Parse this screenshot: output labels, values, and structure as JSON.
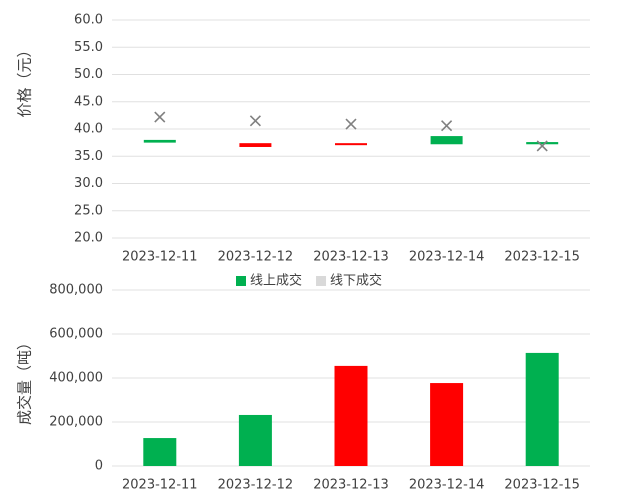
{
  "chart_data": [
    {
      "type": "candlestick",
      "y_label": "价格（元）",
      "categories": [
        "2023-12-11",
        "2023-12-12",
        "2023-12-13",
        "2023-12-14",
        "2023-12-15"
      ],
      "series": [
        {
          "name": "线上成交",
          "color": "#00b050",
          "open": [
            37.5,
            37.4,
            37.4,
            37.2,
            37.2
          ],
          "close": [
            38.0,
            36.7,
            37.1,
            38.7,
            37.6
          ],
          "colors": [
            "#00b050",
            "#ff0000",
            "#ff0000",
            "#00b050",
            "#00b050"
          ]
        },
        {
          "name": "线下成交",
          "color": "#d9d9d9",
          "marker_color": "#808080",
          "values": [
            42.2,
            41.5,
            40.9,
            40.6,
            36.9
          ]
        }
      ],
      "ylim": [
        20,
        60
      ],
      "yticks": [
        {
          "value": 20,
          "label": "20.0"
        },
        {
          "value": 25,
          "label": "25.0"
        },
        {
          "value": 30,
          "label": "30.0"
        },
        {
          "value": 35,
          "label": "35.0"
        },
        {
          "value": 40,
          "label": "40.0"
        },
        {
          "value": 45,
          "label": "45.0"
        },
        {
          "value": 50,
          "label": "50.0"
        },
        {
          "value": 55,
          "label": "55.0"
        },
        {
          "value": 60,
          "label": "60.0"
        }
      ],
      "grid": true,
      "legend": "bottom"
    },
    {
      "type": "bar",
      "y_label": "成交量（吨）",
      "categories": [
        "2023-12-11",
        "2023-12-12",
        "2023-12-13",
        "2023-12-14",
        "2023-12-15"
      ],
      "values": [
        127000,
        232000,
        455000,
        377000,
        514000
      ],
      "colors": [
        "#00b050",
        "#00b050",
        "#ff0000",
        "#ff0000",
        "#00b050"
      ],
      "ylim": [
        0,
        800000
      ],
      "yticks": [
        0,
        {
          "value": 200000,
          "label": "200,000"
        },
        {
          "value": 400000,
          "label": "400,000"
        },
        {
          "value": 600000,
          "label": "600,000"
        },
        {
          "value": 800000,
          "label": "800,000"
        }
      ],
      "grid": true
    }
  ]
}
